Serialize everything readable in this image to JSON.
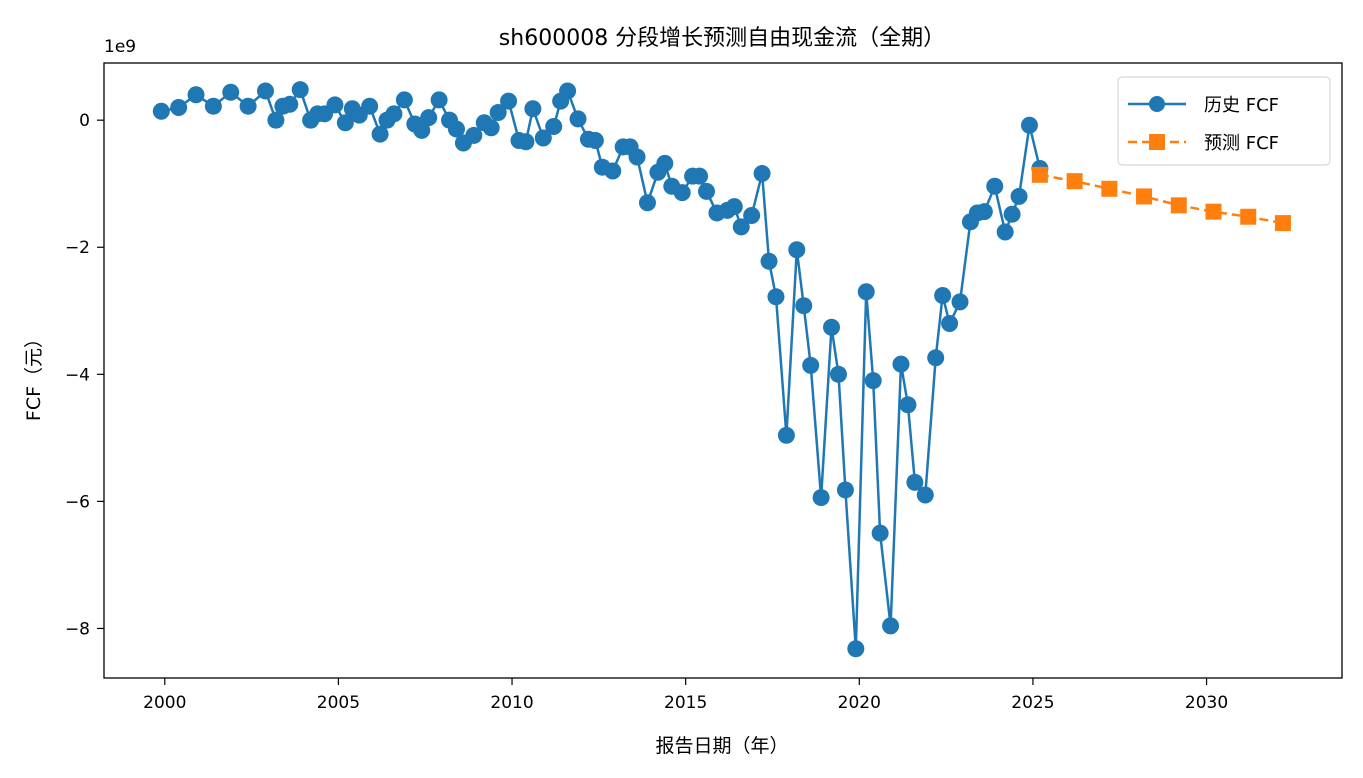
{
  "chart_data": {
    "type": "line",
    "title": "sh600008 分段增长预测自由现金流（全期）",
    "xlabel": "报告日期（年）",
    "ylabel": "FCF（元）",
    "y_multiplier_label": "1e9",
    "xlim": [
      1998.25,
      2033.9
    ],
    "ylim": [
      -8.78,
      0.9
    ],
    "x_ticks": [
      2000,
      2005,
      2010,
      2015,
      2020,
      2025,
      2030
    ],
    "y_ticks": [
      0,
      -2,
      -4,
      -6,
      -8
    ],
    "grid": false,
    "legend_position": "top-right",
    "colors": {
      "history": "#1f77b4",
      "forecast": "#ff7f0e"
    },
    "series": [
      {
        "name": "历史 FCF",
        "style": "solid-circle",
        "x": [
          1999.9,
          2000.4,
          2000.9,
          2001.4,
          2001.9,
          2002.4,
          2002.9,
          2003.2,
          2003.4,
          2003.6,
          2003.9,
          2004.2,
          2004.4,
          2004.6,
          2004.9,
          2005.2,
          2005.4,
          2005.6,
          2005.9,
          2006.2,
          2006.4,
          2006.6,
          2006.9,
          2007.2,
          2007.4,
          2007.6,
          2007.9,
          2008.2,
          2008.4,
          2008.6,
          2008.9,
          2009.2,
          2009.4,
          2009.6,
          2009.9,
          2010.2,
          2010.4,
          2010.6,
          2010.9,
          2011.2,
          2011.4,
          2011.6,
          2011.9,
          2012.2,
          2012.4,
          2012.6,
          2012.9,
          2013.2,
          2013.4,
          2013.6,
          2013.9,
          2014.2,
          2014.4,
          2014.6,
          2014.9,
          2015.2,
          2015.4,
          2015.6,
          2015.9,
          2016.2,
          2016.4,
          2016.6,
          2016.9,
          2017.2,
          2017.4,
          2017.6,
          2017.9,
          2018.2,
          2018.4,
          2018.6,
          2018.9,
          2019.2,
          2019.4,
          2019.6,
          2019.9,
          2020.2,
          2020.4,
          2020.6,
          2020.9,
          2021.2,
          2021.4,
          2021.6,
          2021.9,
          2022.2,
          2022.4,
          2022.6,
          2022.9,
          2023.2,
          2023.4,
          2023.6,
          2023.9,
          2024.2,
          2024.4,
          2024.6,
          2024.9,
          2025.2
        ],
        "values": [
          0.14,
          0.2,
          0.4,
          0.22,
          0.44,
          0.22,
          0.46,
          0.0,
          0.22,
          0.25,
          0.48,
          0.0,
          0.1,
          0.1,
          0.24,
          -0.04,
          0.18,
          0.08,
          0.22,
          -0.22,
          0.0,
          0.1,
          0.32,
          -0.06,
          -0.16,
          0.04,
          0.32,
          0.0,
          -0.14,
          -0.36,
          -0.24,
          -0.04,
          -0.12,
          0.12,
          0.3,
          -0.32,
          -0.34,
          0.18,
          -0.28,
          -0.1,
          0.3,
          0.46,
          0.02,
          -0.3,
          -0.32,
          -0.74,
          -0.8,
          -0.42,
          -0.42,
          -0.58,
          -1.3,
          -0.82,
          -0.68,
          -1.04,
          -1.14,
          -0.88,
          -0.88,
          -1.12,
          -1.46,
          -1.42,
          -1.36,
          -1.68,
          -1.5,
          -0.84,
          -2.22,
          -2.78,
          -4.96,
          -2.04,
          -2.92,
          -3.86,
          -5.94,
          -3.26,
          -4.0,
          -5.82,
          -8.32,
          -2.7,
          -4.1,
          -6.5,
          -7.96,
          -3.84,
          -4.48,
          -5.7,
          -5.9,
          -3.74,
          -2.76,
          -3.2,
          -2.86,
          -1.6,
          -1.46,
          -1.44,
          -1.04,
          -1.76,
          -1.48,
          -1.2,
          -0.08,
          -0.76
        ]
      },
      {
        "name": "预测 FCF",
        "style": "dashed-square",
        "x": [
          2025.2,
          2026.2,
          2027.2,
          2028.2,
          2029.2,
          2030.2,
          2031.2,
          2032.2
        ],
        "values": [
          -0.86,
          -0.96,
          -1.08,
          -1.2,
          -1.34,
          -1.44,
          -1.52,
          -1.62
        ]
      }
    ]
  }
}
